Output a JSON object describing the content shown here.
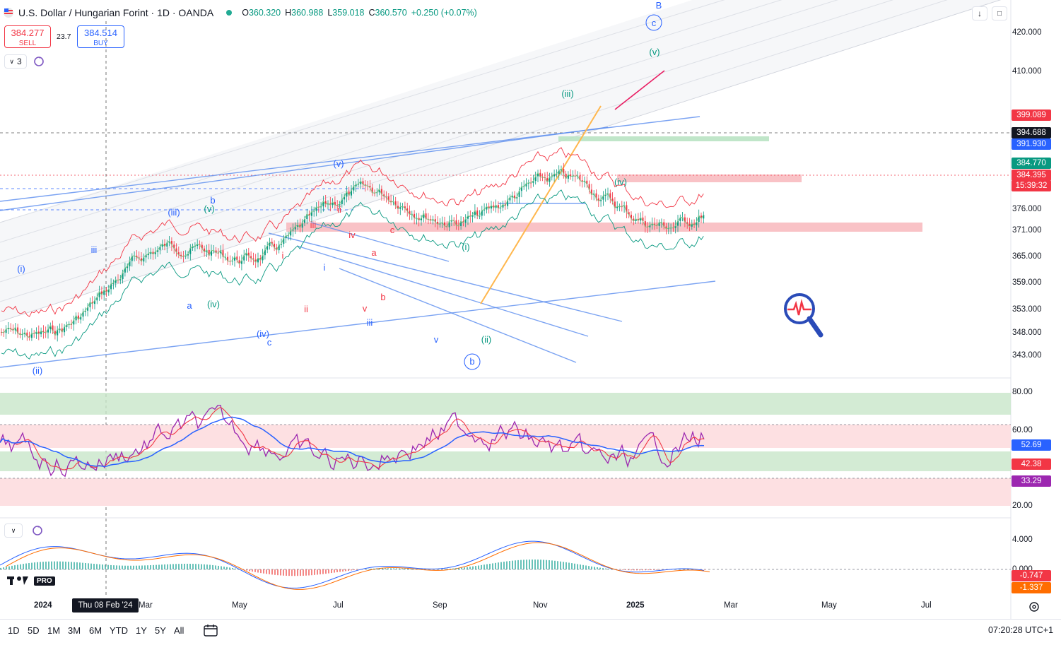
{
  "header": {
    "title": "U.S. Dollar / Hungarian Forint · 1D · OANDA",
    "ohlc": [
      {
        "k": "O",
        "v": "360.320"
      },
      {
        "k": "H",
        "v": "360.988"
      },
      {
        "k": "L",
        "v": "359.018"
      },
      {
        "k": "C",
        "v": "360.570"
      }
    ],
    "change": "+0.250 (+0.07%)"
  },
  "trade": {
    "sell_price": "384.277",
    "sell_label": "SELL",
    "spread": "23.7",
    "buy_price": "384.514",
    "buy_label": "BUY"
  },
  "indicator_toggle": "3",
  "price_axis": [
    "420.000",
    "410.000",
    "376.000",
    "371.000",
    "365.000",
    "359.000",
    "353.000",
    "348.000",
    "343.000"
  ],
  "price_tags": [
    {
      "text": "399.089",
      "color": "#f23645"
    },
    {
      "text": "394.688",
      "color": "#131722"
    },
    {
      "text": "391.930",
      "color": "#2962ff"
    },
    {
      "text": "384.770",
      "color": "#089981"
    },
    {
      "text": "384.395",
      "color": "#f23645"
    },
    {
      "text": "15:39:32",
      "color": "#f23645"
    }
  ],
  "rsi_axis": [
    "80.00",
    "60.00",
    "20.00"
  ],
  "rsi_tags": [
    {
      "text": "52.69",
      "color": "#2962ff"
    },
    {
      "text": "42.38",
      "color": "#f23645"
    },
    {
      "text": "33.29",
      "color": "#9c27b0"
    }
  ],
  "macd_axis": [
    "4.000",
    "0.000"
  ],
  "macd_tags": [
    {
      "text": "-0.747",
      "color": "#f23645"
    },
    {
      "text": "-1.337",
      "color": "#ff6d00"
    }
  ],
  "time_axis": [
    "2024",
    "Mar",
    "May",
    "Jul",
    "Sep",
    "Nov",
    "2025",
    "Mar",
    "May",
    "Jul"
  ],
  "crosshair_date": "Thu 08 Feb '24",
  "logo": "PRO",
  "timeframes": [
    "1D",
    "5D",
    "1M",
    "3M",
    "6M",
    "YTD",
    "1Y",
    "5Y",
    "All"
  ],
  "clock": "07:20:28 UTC+1",
  "wave_labels": [
    "B",
    "c",
    "(v)",
    "(iii)",
    "(iv)",
    "(v)",
    "(i)",
    "(ii)",
    "b",
    "(iv)",
    "c",
    "iii",
    "v",
    "(i)",
    "(ii)",
    "(iii)",
    "(v)",
    "b",
    "a",
    "i",
    "ii",
    "iii",
    "iv",
    "v",
    "a",
    "b",
    "c",
    "(iv)",
    "iii",
    "i",
    "ii"
  ],
  "colors": {
    "up": "#089981",
    "down": "#f23645",
    "accent": "#2962ff"
  }
}
